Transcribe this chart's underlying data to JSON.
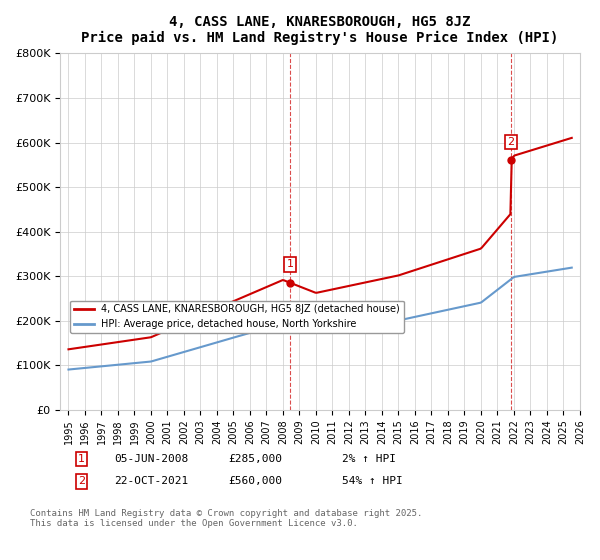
{
  "title1": "4, CASS LANE, KNARESBOROUGH, HG5 8JZ",
  "title2": "Price paid vs. HM Land Registry's House Price Index (HPI)",
  "ylabel_ticks": [
    "£0",
    "£100K",
    "£200K",
    "£300K",
    "£400K",
    "£500K",
    "£600K",
    "£700K",
    "£800K"
  ],
  "ylim": [
    0,
    800000
  ],
  "xlim_start": 1995.0,
  "xlim_end": 2026.0,
  "purchase1_date": 2008.43,
  "purchase1_price": 285000,
  "purchase1_label": "1",
  "purchase2_date": 2021.81,
  "purchase2_price": 560000,
  "purchase2_label": "2",
  "legend_line1": "4, CASS LANE, KNARESBOROUGH, HG5 8JZ (detached house)",
  "legend_line2": "HPI: Average price, detached house, North Yorkshire",
  "annotation1": "1   05-JUN-2008      £285,000         2% ↑ HPI",
  "annotation2": "2   22-OCT-2021      £560,000        54% ↑ HPI",
  "footer": "Contains HM Land Registry data © Crown copyright and database right 2025.\nThis data is licensed under the Open Government Licence v3.0.",
  "line_color_price": "#cc0000",
  "line_color_hpi": "#6699cc",
  "vline_color": "#cc0000",
  "background_color": "#ffffff",
  "grid_color": "#cccccc"
}
